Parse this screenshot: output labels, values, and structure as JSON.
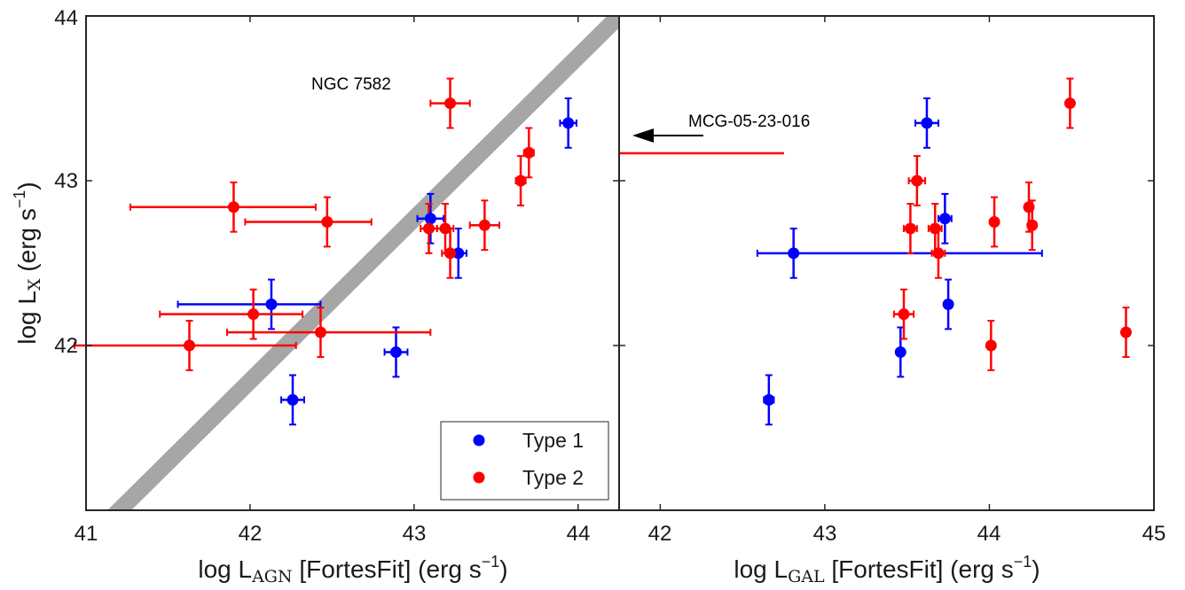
{
  "colors": {
    "type1": "#0000ff",
    "type2": "#ff0000",
    "relation": "#a6a6a6",
    "axes": "#262626"
  },
  "chart_data": [
    {
      "type": "scatter",
      "panel": "left",
      "title": "",
      "xlabel": {
        "prefix": "log L",
        "subscript": "AGN",
        "suffix": " [FortesFit] (erg s",
        "superscript": "−1",
        "close": ")"
      },
      "ylabel": {
        "prefix": "log L",
        "subscript": "X",
        "suffix": " (erg s",
        "superscript": "−1",
        "close": ")"
      },
      "xlim": [
        41,
        44.25
      ],
      "ylim": [
        41,
        44
      ],
      "xticks": [
        "41",
        "42",
        "43",
        "44"
      ],
      "yticks": [
        "42",
        "43",
        "44"
      ],
      "grid": false,
      "legend": {
        "position": "bottom-right",
        "entries": [
          "Type 1",
          "Type 2"
        ]
      },
      "relation": {
        "description": "one-to-one band",
        "x": [
          41.0,
          44.25
        ],
        "y": [
          40.8,
          44.0
        ]
      },
      "annotations": [
        {
          "text": "NGC 7582",
          "x": 42.77,
          "y": 43.58
        }
      ],
      "series": [
        {
          "name": "Type 1",
          "points": [
            {
              "x": 43.94,
              "y": 43.35,
              "xerr": [
                0.05,
                0.05
              ],
              "yerr": [
                0.15,
                0.15
              ]
            },
            {
              "x": 43.1,
              "y": 42.77,
              "xerr": [
                0.08,
                0.08
              ],
              "yerr": [
                0.15,
                0.15
              ]
            },
            {
              "x": 43.27,
              "y": 42.56,
              "xerr": [
                0.05,
                0.05
              ],
              "yerr": [
                0.15,
                0.15
              ]
            },
            {
              "x": 42.13,
              "y": 42.25,
              "xerr": [
                0.57,
                0.3
              ],
              "yerr": [
                0.15,
                0.15
              ]
            },
            {
              "x": 42.89,
              "y": 41.96,
              "xerr": [
                0.07,
                0.07
              ],
              "yerr": [
                0.15,
                0.15
              ]
            },
            {
              "x": 42.26,
              "y": 41.67,
              "xerr": [
                0.07,
                0.07
              ],
              "yerr": [
                0.15,
                0.15
              ]
            }
          ]
        },
        {
          "name": "Type 2",
          "points": [
            {
              "x": 43.22,
              "y": 43.47,
              "xerr": [
                0.12,
                0.12
              ],
              "yerr": [
                0.15,
                0.15
              ]
            },
            {
              "x": 43.7,
              "y": 43.17,
              "xerr": [
                0.03,
                0.03
              ],
              "yerr": [
                0.15,
                0.15
              ]
            },
            {
              "x": 43.65,
              "y": 43.0,
              "xerr": [
                0.03,
                0.03
              ],
              "yerr": [
                0.15,
                0.15
              ]
            },
            {
              "x": 41.9,
              "y": 42.84,
              "xerr": [
                0.63,
                0.5
              ],
              "yerr": [
                0.15,
                0.15
              ]
            },
            {
              "x": 42.47,
              "y": 42.75,
              "xerr": [
                0.5,
                0.27
              ],
              "yerr": [
                0.15,
                0.15
              ]
            },
            {
              "x": 43.43,
              "y": 42.73,
              "xerr": [
                0.09,
                0.09
              ],
              "yerr": [
                0.15,
                0.15
              ]
            },
            {
              "x": 43.09,
              "y": 42.71,
              "xerr": [
                0.05,
                0.05
              ],
              "yerr": [
                0.15,
                0.15
              ]
            },
            {
              "x": 43.19,
              "y": 42.71,
              "xerr": [
                0.05,
                0.05
              ],
              "yerr": [
                0.15,
                0.15
              ]
            },
            {
              "x": 43.22,
              "y": 42.56,
              "xerr": [
                0.05,
                0.05
              ],
              "yerr": [
                0.15,
                0.15
              ]
            },
            {
              "x": 42.02,
              "y": 42.19,
              "xerr": [
                0.57,
                0.3
              ],
              "yerr": [
                0.15,
                0.15
              ]
            },
            {
              "x": 42.43,
              "y": 42.08,
              "xerr": [
                0.57,
                0.67
              ],
              "yerr": [
                0.15,
                0.15
              ]
            },
            {
              "x": 41.63,
              "y": 42.0,
              "xerr": [
                0.7,
                0.65
              ],
              "yerr": [
                0.15,
                0.15
              ]
            }
          ]
        }
      ]
    },
    {
      "type": "scatter",
      "panel": "right",
      "title": "",
      "xlabel": {
        "prefix": "log L",
        "subscript": "GAL",
        "suffix": " [FortesFit] (erg s",
        "superscript": "−1",
        "close": ")"
      },
      "xlim": [
        41.75,
        45
      ],
      "ylim": [
        41,
        44
      ],
      "xticks": [
        "42",
        "43",
        "44",
        "45"
      ],
      "grid": false,
      "annotations": [
        {
          "text": "MCG-05-23-016",
          "x": 42.2,
          "y": 43.32,
          "arrow": {
            "from_x": 42.1,
            "to_x": 41.82,
            "y": 43.26
          },
          "upper_limit_bar": {
            "x_start": 41.75,
            "x_end": 42.78,
            "y": 43.17,
            "series": "Type 2"
          }
        }
      ],
      "series": [
        {
          "name": "Type 1",
          "points": [
            {
              "x": 43.62,
              "y": 43.35,
              "xerr": [
                0.07,
                0.07
              ],
              "yerr": [
                0.15,
                0.15
              ]
            },
            {
              "x": 43.73,
              "y": 42.77,
              "xerr": [
                0.04,
                0.04
              ],
              "yerr": [
                0.15,
                0.15
              ]
            },
            {
              "x": 42.81,
              "y": 42.56,
              "xerr": [
                0.22,
                1.51
              ],
              "yerr": [
                0.15,
                0.15
              ]
            },
            {
              "x": 43.75,
              "y": 42.25,
              "xerr": [
                0.02,
                0.02
              ],
              "yerr": [
                0.15,
                0.15
              ]
            },
            {
              "x": 43.46,
              "y": 41.96,
              "xerr": [
                0.02,
                0.02
              ],
              "yerr": [
                0.15,
                0.15
              ]
            },
            {
              "x": 42.66,
              "y": 41.67,
              "xerr": [
                0.03,
                0.03
              ],
              "yerr": [
                0.15,
                0.15
              ]
            }
          ]
        },
        {
          "name": "Type 2",
          "points": [
            {
              "x": 44.49,
              "y": 43.47,
              "xerr": [
                0.02,
                0.02
              ],
              "yerr": [
                0.15,
                0.15
              ]
            },
            {
              "x": 43.56,
              "y": 43.0,
              "xerr": [
                0.05,
                0.05
              ],
              "yerr": [
                0.15,
                0.15
              ]
            },
            {
              "x": 44.24,
              "y": 42.84,
              "xerr": [
                0.02,
                0.02
              ],
              "yerr": [
                0.15,
                0.15
              ]
            },
            {
              "x": 44.03,
              "y": 42.75,
              "xerr": [
                0.02,
                0.02
              ],
              "yerr": [
                0.15,
                0.15
              ]
            },
            {
              "x": 44.26,
              "y": 42.73,
              "xerr": [
                0.02,
                0.02
              ],
              "yerr": [
                0.15,
                0.15
              ]
            },
            {
              "x": 43.52,
              "y": 42.71,
              "xerr": [
                0.04,
                0.04
              ],
              "yerr": [
                0.15,
                0.15
              ]
            },
            {
              "x": 43.67,
              "y": 42.71,
              "xerr": [
                0.04,
                0.04
              ],
              "yerr": [
                0.15,
                0.15
              ]
            },
            {
              "x": 43.69,
              "y": 42.56,
              "xerr": [
                0.04,
                0.04
              ],
              "yerr": [
                0.15,
                0.15
              ]
            },
            {
              "x": 43.48,
              "y": 42.19,
              "xerr": [
                0.06,
                0.06
              ],
              "yerr": [
                0.15,
                0.15
              ]
            },
            {
              "x": 44.83,
              "y": 42.08,
              "xerr": [
                0.02,
                0.02
              ],
              "yerr": [
                0.15,
                0.15
              ]
            },
            {
              "x": 44.01,
              "y": 42.0,
              "xerr": [
                0.02,
                0.02
              ],
              "yerr": [
                0.15,
                0.15
              ]
            }
          ]
        }
      ]
    }
  ]
}
